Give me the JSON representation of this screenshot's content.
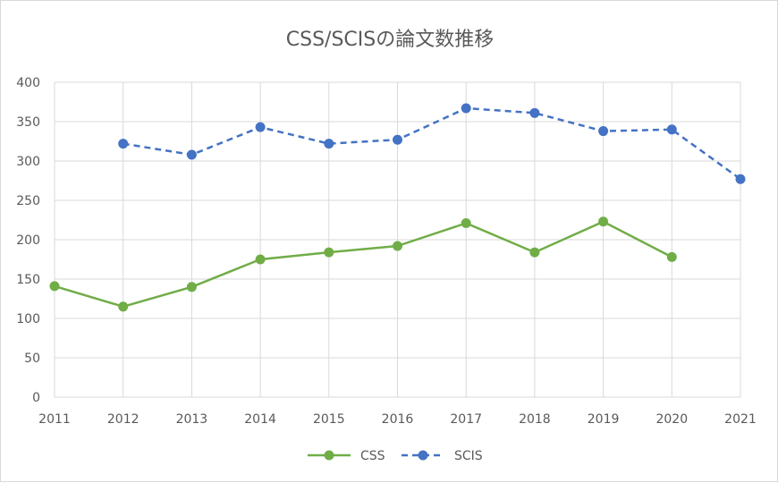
{
  "chart_data": {
    "type": "line",
    "title": "CSS/SCISの論文数推移",
    "x": [
      "2011",
      "2012",
      "2013",
      "2014",
      "2015",
      "2016",
      "2017",
      "2018",
      "2019",
      "2020",
      "2021"
    ],
    "yticks": [
      "0",
      "50",
      "100",
      "150",
      "200",
      "250",
      "300",
      "350",
      "400"
    ],
    "ylim": [
      0,
      400
    ],
    "grid": true,
    "legend_position": "bottom",
    "series": [
      {
        "name": "CSS",
        "color": "#70ad47",
        "dash": "solid",
        "values": [
          141,
          115,
          140,
          175,
          184,
          192,
          221,
          184,
          223,
          178,
          null
        ]
      },
      {
        "name": "SCIS",
        "color": "#4472c4",
        "dash": "dashed",
        "values": [
          null,
          322,
          308,
          343,
          322,
          327,
          367,
          361,
          338,
          340,
          277
        ]
      }
    ]
  }
}
